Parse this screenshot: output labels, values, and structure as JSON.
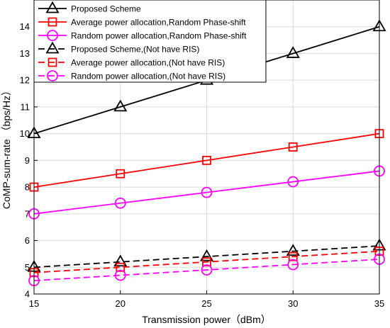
{
  "chart_data": {
    "type": "line",
    "xlabel": "Transmission power（dBm）",
    "ylabel": "CoMP-sum-rate （bps/Hz）",
    "xlim": [
      15,
      35
    ],
    "ylim": [
      4,
      15
    ],
    "xticks": [
      "15",
      "20",
      "25",
      "30",
      "35"
    ],
    "yticks": [
      "4",
      "5",
      "6",
      "7",
      "8",
      "9",
      "10",
      "11",
      "12",
      "13",
      "14"
    ],
    "grid": true,
    "legend_position": "top-left",
    "x": [
      15,
      20,
      25,
      30,
      35
    ],
    "series": [
      {
        "name": "Proposed Scheme",
        "values": [
          10,
          11,
          12,
          13,
          14
        ],
        "color": "#000000",
        "dash": "solid",
        "marker": "triangle"
      },
      {
        "name": "Average power allocation,Random Phase-shift",
        "values": [
          8,
          8.5,
          9,
          9.5,
          10
        ],
        "color": "#ff0000",
        "dash": "solid",
        "marker": "square"
      },
      {
        "name": "Random power allocation,Random Phase-shift",
        "values": [
          7,
          7.4,
          7.8,
          8.2,
          8.6
        ],
        "color": "#ff00ff",
        "dash": "solid",
        "marker": "circle"
      },
      {
        "name": "Proposed Scheme,(Not have RIS)",
        "values": [
          5,
          5.2,
          5.4,
          5.6,
          5.8
        ],
        "color": "#000000",
        "dash": "dashed",
        "marker": "triangle"
      },
      {
        "name": "Average power allocation,(Not have RIS)",
        "values": [
          4.8,
          5.0,
          5.2,
          5.4,
          5.6
        ],
        "color": "#ff0000",
        "dash": "dashed",
        "marker": "square"
      },
      {
        "name": "Random power allocation,(Not have RIS)",
        "values": [
          4.5,
          4.7,
          4.9,
          5.1,
          5.3
        ],
        "color": "#ff00ff",
        "dash": "dashed",
        "marker": "circle"
      }
    ]
  }
}
